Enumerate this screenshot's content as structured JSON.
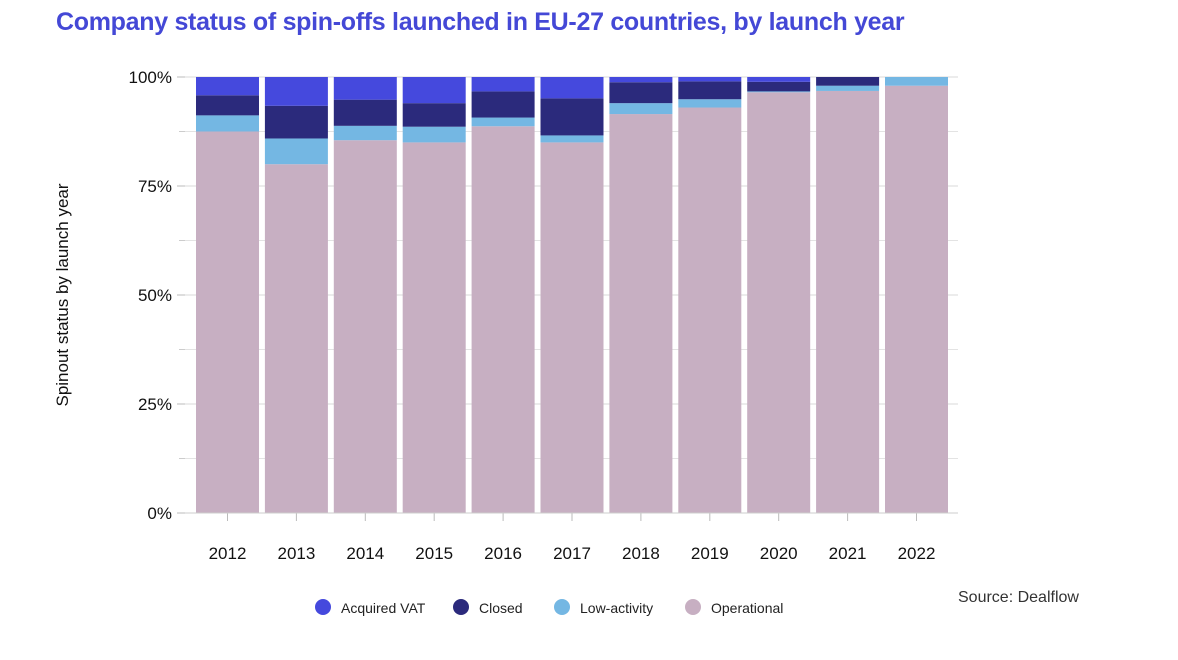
{
  "title": "Company status of spin-offs launched in EU-27 countries, by launch year",
  "source": "Source: Dealflow",
  "chart_data": {
    "type": "bar",
    "stacked": true,
    "ylabel": "Spinout status by launch year",
    "xlabel": "",
    "ylim": [
      0,
      100
    ],
    "yticks": [
      "0%",
      "25%",
      "50%",
      "75%",
      "100%"
    ],
    "categories": [
      "2012",
      "2013",
      "2014",
      "2015",
      "2016",
      "2017",
      "2018",
      "2019",
      "2020",
      "2021",
      "2022"
    ],
    "series": [
      {
        "name": "Operational",
        "color": "#c7afc2",
        "values": [
          87.5,
          80.0,
          85.5,
          85.0,
          88.7,
          85.0,
          91.5,
          93.0,
          96.5,
          96.8,
          98.0
        ]
      },
      {
        "name": "Low-activity",
        "color": "#74b7e3",
        "values": [
          3.7,
          5.9,
          3.3,
          3.6,
          2.0,
          1.6,
          2.5,
          1.9,
          0.2,
          1.2,
          2.0
        ]
      },
      {
        "name": "Closed",
        "color": "#2b2a7c",
        "values": [
          4.6,
          7.5,
          6.0,
          5.4,
          6.0,
          8.5,
          4.8,
          4.1,
          2.2,
          2.0,
          0.0
        ]
      },
      {
        "name": "Acquired VAT",
        "color": "#4549dd",
        "values": [
          4.2,
          6.6,
          5.2,
          6.0,
          3.3,
          4.9,
          1.2,
          1.0,
          1.1,
          0.0,
          0.0
        ]
      }
    ],
    "legend": {
      "placement": "bottom",
      "order": [
        "Acquired VAT",
        "Closed",
        "Low-activity",
        "Operational"
      ]
    },
    "grid": true
  }
}
